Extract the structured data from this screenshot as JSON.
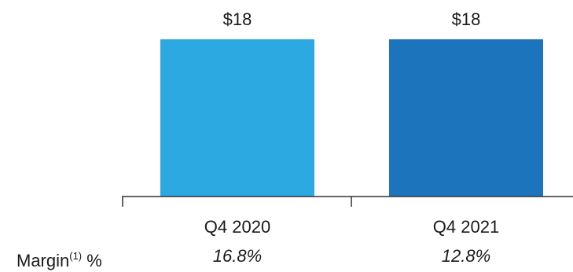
{
  "chart_data": {
    "type": "bar",
    "categories": [
      "Q4 2020",
      "Q4 2021"
    ],
    "values": [
      18,
      18
    ],
    "value_labels": [
      "$18",
      "$18"
    ],
    "colors": [
      "#2ba9e0",
      "#1c75bc"
    ],
    "ylim": [
      0,
      18
    ],
    "grid": false,
    "legend": "none"
  },
  "margin": {
    "label": "Margin",
    "label_superscript": "(1)",
    "label_suffix": " %",
    "values": [
      "16.8%",
      "12.8%"
    ]
  }
}
